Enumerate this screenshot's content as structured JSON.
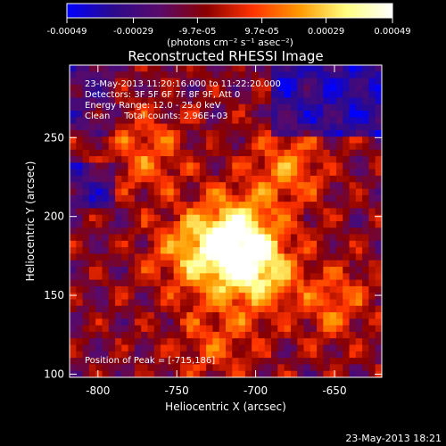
{
  "colorbar": {
    "ticks": [
      "-0.00049",
      "-0.00029",
      "-9.7e-05",
      "9.7e-05",
      "0.00029",
      "0.00049"
    ],
    "tick_values": [
      -0.00049,
      -0.00029,
      -9.7e-05,
      9.7e-05,
      0.00029,
      0.00049
    ],
    "range": [
      -0.00049,
      0.00049
    ],
    "units_label": "(photons cm⁻² s⁻¹ asec⁻²)",
    "colors": [
      "#0000ff",
      "#2c0a8c",
      "#5a0a6a",
      "#8a0000",
      "#ff3300",
      "#ff9900",
      "#ffff80",
      "#ffffff"
    ]
  },
  "chart_data": {
    "type": "heatmap",
    "title": "Reconstructed RHESSI Image",
    "xlabel": "Heliocentric X (arcsec)",
    "ylabel": "Heliocentric Y (arcsec)",
    "xlim": [
      -818,
      -620
    ],
    "ylim": [
      98,
      296
    ],
    "xticks": [
      -800,
      -750,
      -700,
      -650
    ],
    "yticks": [
      100,
      150,
      200,
      250
    ],
    "info_lines": [
      "23-May-2013 11:20:16.000 to 11:22:20.000",
      "Detectors: 3F 5F 6F 7F 8F 9F, Att 0",
      "Energy Range: 12.0 - 25.0 keV",
      "Clean     Total counts: 2.96E+03"
    ],
    "peak_label": "Position of Peak = [-715,186]",
    "peak": [
      -715,
      186
    ],
    "sources": [
      {
        "x": -715,
        "y": 186,
        "amp": 1.0
      },
      {
        "x": -700,
        "y": 165,
        "amp": 0.75
      },
      {
        "x": -745,
        "y": 175,
        "amp": 0.45
      },
      {
        "x": -680,
        "y": 230,
        "amp": 0.5
      },
      {
        "x": -770,
        "y": 240,
        "amp": 0.45
      },
      {
        "x": -650,
        "y": 145,
        "amp": 0.4
      },
      {
        "x": -725,
        "y": 120,
        "amp": 0.35
      }
    ]
  },
  "timestamp": "23-May-2013 18:21"
}
